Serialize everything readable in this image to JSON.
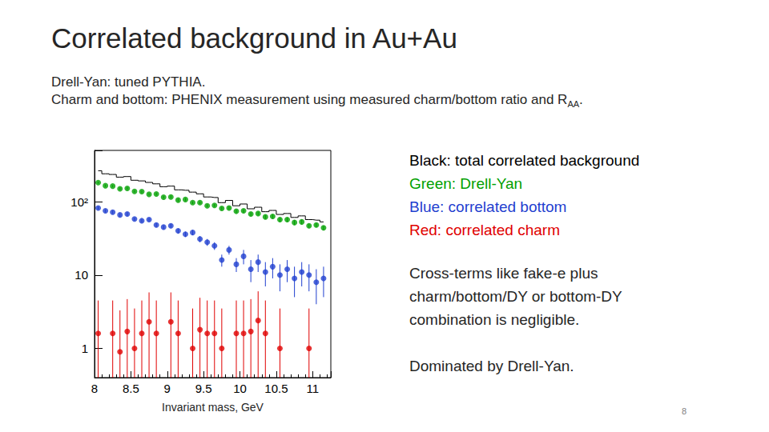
{
  "slide": {
    "title": "Correlated background in Au+Au",
    "subtitle": [
      [
        {
          "text": "Drell-Yan: tuned PYTHIA."
        }
      ],
      [
        {
          "text": "Charm and bottom: PHENIX measurement using measured charm/bottom ratio and R"
        },
        {
          "text": "AA",
          "sub": true
        },
        {
          "text": "."
        }
      ]
    ],
    "notes": [
      [
        "Cross-terms like fake-e plus",
        "charm/bottom/DY or bottom-DY",
        "combination is negligible."
      ],
      [
        "Dominated by Drell-Yan."
      ]
    ],
    "page": "8"
  },
  "chart_data": {
    "type": "scatter",
    "x_label": "Invariant mass, GeV",
    "log": "y",
    "grid": false,
    "xlim": [
      8,
      11.25
    ],
    "xticks": [
      8,
      8.5,
      9,
      9.5,
      10,
      10.5,
      11
    ],
    "ylim": [
      0.4,
      500
    ],
    "yticks": [
      1,
      10,
      {
        "value": 100,
        "label": "10²"
      }
    ],
    "x": [
      8.05,
      8.15,
      8.25,
      8.35,
      8.45,
      8.55,
      8.65,
      8.75,
      8.85,
      8.95,
      9.05,
      9.15,
      9.25,
      9.35,
      9.45,
      9.55,
      9.65,
      9.75,
      9.85,
      9.95,
      10.05,
      10.15,
      10.25,
      10.35,
      10.45,
      10.55,
      10.65,
      10.75,
      10.85,
      10.95,
      11.05,
      11.15
    ],
    "series": [
      {
        "name": "Black: total correlated background",
        "type": "step",
        "color": "#000000",
        "line_style": "solid",
        "values": [
          264,
          240,
          235,
          216,
          220,
          196,
          192,
          183,
          175,
          160,
          163,
          145,
          143,
          135,
          128,
          116,
          114,
          97,
          104,
          88,
          93,
          80,
          84,
          73,
          76,
          67,
          69,
          61,
          64,
          57,
          56,
          53
        ]
      },
      {
        "name": "Green: Drell-Yan",
        "type": "scatter",
        "marker": "circle",
        "color": "#00a000",
        "values": [
          182,
          165,
          163,
          150,
          152,
          138,
          137,
          126,
          127,
          115,
          116,
          105,
          107,
          97,
          97,
          88,
          89,
          81,
          82,
          74,
          75,
          68,
          69,
          62,
          63,
          57,
          57,
          52,
          53,
          47,
          48,
          44
        ],
        "errors": [
          6,
          6,
          6,
          6,
          6,
          5,
          5,
          5,
          5,
          5,
          5,
          5,
          5,
          4,
          4,
          4,
          4,
          4,
          4,
          4,
          4,
          4,
          4,
          4,
          4,
          4,
          4,
          4,
          4,
          3,
          3,
          3
        ]
      },
      {
        "name": "Blue: correlated bottom",
        "type": "scatter",
        "marker": "circle",
        "color": "#1f3fcf",
        "values": [
          82,
          75,
          72,
          66,
          68,
          58,
          55,
          57,
          48,
          45,
          47,
          40,
          36,
          38,
          31,
          28,
          25,
          16,
          22,
          14,
          18,
          12,
          15,
          11,
          13,
          10,
          12,
          9,
          11,
          10,
          8,
          9
        ],
        "errors": [
          4,
          4,
          4,
          4,
          4,
          3,
          3,
          3,
          3,
          3,
          3,
          3,
          3,
          3,
          3,
          3,
          3,
          3,
          3,
          3,
          4,
          4,
          4,
          4,
          4,
          4,
          4,
          4,
          4,
          4,
          4,
          4
        ]
      },
      {
        "name": "Red: correlated charm",
        "type": "scatter",
        "marker": "circle",
        "color": "#e00000",
        "values": [
          1.6,
          null,
          1.6,
          0.9,
          1.7,
          1.0,
          1.6,
          2.3,
          1.6,
          null,
          2.3,
          1.6,
          null,
          1.0,
          1.8,
          1.6,
          1.6,
          1.0,
          null,
          1.6,
          1.6,
          1.7,
          2.4,
          1.6,
          null,
          1.0,
          null,
          null,
          null,
          1.0,
          null,
          null
        ],
        "errors": [
          2.9,
          null,
          2.9,
          2.4,
          3.0,
          2.5,
          2.9,
          3.5,
          2.9,
          null,
          3.5,
          2.9,
          null,
          2.5,
          3.1,
          2.9,
          2.9,
          2.5,
          null,
          2.9,
          2.9,
          3.0,
          3.6,
          2.9,
          null,
          2.5,
          null,
          null,
          null,
          2.5,
          null,
          null
        ]
      }
    ]
  }
}
